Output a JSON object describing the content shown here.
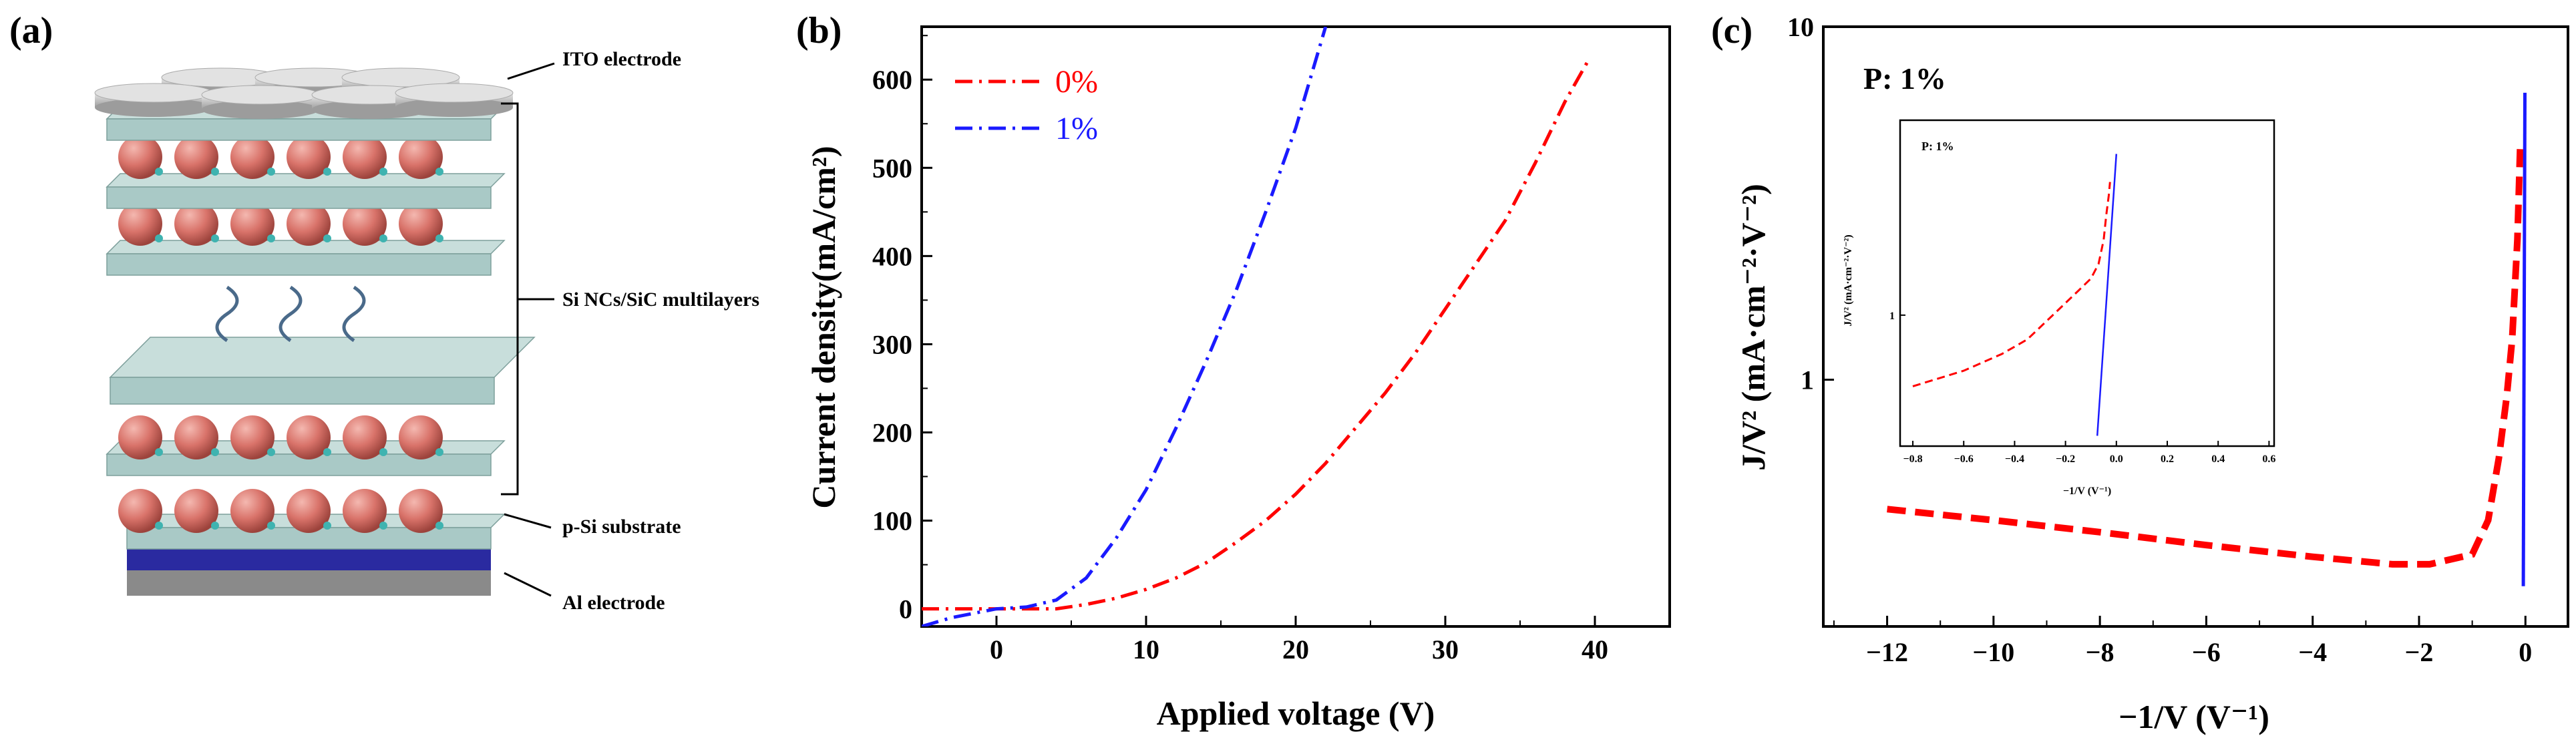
{
  "panels": {
    "a": {
      "label": "(a)",
      "annotations": [
        "ITO electrode",
        "Si NCs/SiC multilayers",
        "p-Si substrate",
        "Al electrode"
      ]
    },
    "b": {
      "label": "(b)"
    },
    "c": {
      "label": "(c)",
      "text": "P: 1%"
    }
  },
  "colors": {
    "red": "#ff0000",
    "blue": "#1a1aff",
    "slab": "#a9c9c6",
    "sphere": "#d9736a",
    "al": "#2a2aa0",
    "ito": "#c8c8c8"
  },
  "chart_data": [
    {
      "id": "b",
      "type": "line",
      "title": "",
      "xlabel": "Applied voltage (V)",
      "ylabel": "Current density(mA/cm²)",
      "xlim": [
        -5,
        45
      ],
      "ylim": [
        -20,
        660
      ],
      "xticks": [
        0,
        10,
        20,
        30,
        40
      ],
      "xtick_labels": [
        "0",
        "10",
        "20",
        "30",
        "40"
      ],
      "yticks": [
        0,
        100,
        200,
        300,
        400,
        500,
        600
      ],
      "ytick_labels": [
        "0",
        "100",
        "200",
        "300",
        "400",
        "500",
        "600"
      ],
      "legend_position": "top-left",
      "series": [
        {
          "name": "0%",
          "color": "#ff0000",
          "style": "dash-dot",
          "x": [
            -5,
            0,
            4,
            6,
            8,
            10,
            12,
            14,
            16,
            18,
            20,
            22,
            24,
            26,
            28,
            30,
            32,
            34,
            36,
            38,
            39.5
          ],
          "y": [
            0,
            0,
            0,
            5,
            12,
            22,
            35,
            52,
            75,
            100,
            130,
            165,
            205,
            245,
            290,
            340,
            390,
            440,
            505,
            575,
            620
          ]
        },
        {
          "name": "1%",
          "color": "#1a1aff",
          "style": "dash-dot",
          "x": [
            -5,
            -3,
            0,
            2,
            4,
            6,
            8,
            10,
            12,
            14,
            16,
            18,
            20,
            22
          ],
          "y": [
            -20,
            -10,
            0,
            2,
            10,
            35,
            80,
            135,
            205,
            280,
            360,
            450,
            545,
            660
          ]
        }
      ]
    },
    {
      "id": "c",
      "type": "line",
      "xscale": "linear",
      "yscale": "log",
      "xlabel": "−1/V (V⁻¹)",
      "ylabel": "J/V² (mA·cm⁻²·V⁻²)",
      "xlim": [
        -13.2,
        0.8
      ],
      "ylim": [
        0.2,
        10
      ],
      "xticks": [
        -12,
        -10,
        -8,
        -6,
        -4,
        -2,
        0
      ],
      "xtick_labels": [
        "−12",
        "−10",
        "−8",
        "−6",
        "−4",
        "−2",
        "0"
      ],
      "yticks": [
        1,
        10
      ],
      "ytick_labels": [
        "1",
        "10"
      ],
      "annotation": "P: 1%",
      "series": [
        {
          "name": "0%",
          "color": "#ff0000",
          "style": "dashed",
          "x": [
            -12,
            -10,
            -8,
            -6,
            -4,
            -2.5,
            -1.8,
            -1.0,
            -0.7,
            -0.5,
            -0.35,
            -0.25,
            -0.15,
            -0.1
          ],
          "y": [
            0.43,
            0.4,
            0.37,
            0.34,
            0.315,
            0.3,
            0.3,
            0.32,
            0.4,
            0.6,
            0.9,
            1.3,
            2.5,
            4.5
          ]
        },
        {
          "name": "1%",
          "color": "#1a1aff",
          "style": "solid",
          "x": [
            -0.04,
            -0.01
          ],
          "y": [
            0.26,
            6.5
          ]
        }
      ],
      "inset": {
        "xlabel": "−1/V (V⁻¹)",
        "ylabel": "J/V² (mA·cm⁻²·V⁻²)",
        "xlim": [
          -0.85,
          0.62
        ],
        "ylim": [
          0.3,
          6
        ],
        "yscale": "log",
        "xticks": [
          -0.8,
          -0.6,
          -0.4,
          -0.2,
          0.0,
          0.2,
          0.4,
          0.6
        ],
        "xtick_labels": [
          "−0.8",
          "−0.6",
          "−0.4",
          "−0.2",
          "0.0",
          "0.2",
          "0.4",
          "0.6"
        ],
        "yticks": [
          1
        ],
        "ytick_labels": [
          "1"
        ],
        "annotation": "P: 1%",
        "series": [
          {
            "name": "0%",
            "color": "#ff0000",
            "style": "dashed",
            "x": [
              -0.8,
              -0.6,
              -0.45,
              -0.35,
              -0.25,
              -0.15,
              -0.1,
              -0.07,
              -0.05,
              -0.04,
              -0.03,
              -0.025
            ],
            "y": [
              0.52,
              0.6,
              0.7,
              0.8,
              1.0,
              1.25,
              1.4,
              1.6,
              2.0,
              2.5,
              3.0,
              3.4
            ]
          },
          {
            "name": "1%",
            "color": "#1a1aff",
            "style": "solid",
            "x": [
              -0.075,
              0.0
            ],
            "y": [
              0.33,
              4.4
            ]
          }
        ]
      }
    }
  ]
}
